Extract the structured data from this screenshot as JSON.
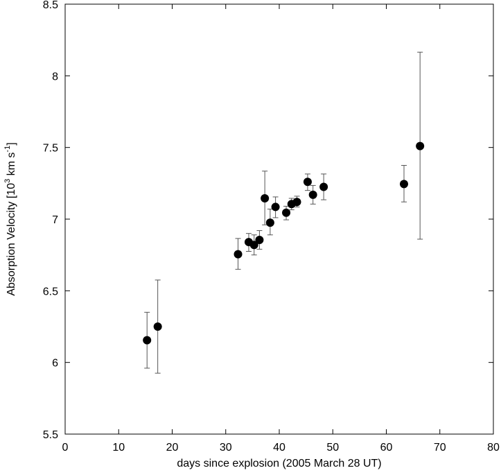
{
  "chart_data": {
    "type": "scatter",
    "xlabel": "days since explosion (2005 March 28 UT)",
    "ylabel_parts": [
      "Absorption Velocity [10",
      "3",
      " km s",
      "-1",
      "]"
    ],
    "xlim": [
      0,
      80
    ],
    "ylim": [
      5.5,
      8.5
    ],
    "xticks": [
      0,
      10,
      20,
      30,
      40,
      50,
      60,
      70,
      80
    ],
    "yticks": [
      5.5,
      6,
      6.5,
      7,
      7.5,
      8,
      8.5
    ],
    "ytick_labels": [
      "5.5",
      "6",
      "6.5",
      "7",
      "7.5",
      "8",
      "8.5"
    ],
    "grid": false,
    "series": [
      {
        "points": [
          {
            "x": 15.3,
            "y": 6.155,
            "ylo": 5.96,
            "yhi": 6.35
          },
          {
            "x": 17.3,
            "y": 6.25,
            "ylo": 5.925,
            "yhi": 6.575
          },
          {
            "x": 32.3,
            "y": 6.755,
            "ylo": 6.65,
            "yhi": 6.865
          },
          {
            "x": 34.3,
            "y": 6.84,
            "ylo": 6.775,
            "yhi": 6.9
          },
          {
            "x": 35.3,
            "y": 6.82,
            "ylo": 6.75,
            "yhi": 6.89
          },
          {
            "x": 36.3,
            "y": 6.855,
            "ylo": 6.79,
            "yhi": 6.92
          },
          {
            "x": 37.3,
            "y": 7.145,
            "ylo": 6.96,
            "yhi": 7.335
          },
          {
            "x": 38.3,
            "y": 6.975,
            "ylo": 6.89,
            "yhi": 7.07
          },
          {
            "x": 39.3,
            "y": 7.085,
            "ylo": 7.01,
            "yhi": 7.155
          },
          {
            "x": 41.3,
            "y": 7.045,
            "ylo": 6.995,
            "yhi": 7.09
          },
          {
            "x": 42.3,
            "y": 7.105,
            "ylo": 7.065,
            "yhi": 7.145
          },
          {
            "x": 43.3,
            "y": 7.12,
            "ylo": 7.085,
            "yhi": 7.16
          },
          {
            "x": 45.3,
            "y": 7.26,
            "ylo": 7.2,
            "yhi": 7.315
          },
          {
            "x": 46.3,
            "y": 7.17,
            "ylo": 7.105,
            "yhi": 7.235
          },
          {
            "x": 48.3,
            "y": 7.225,
            "ylo": 7.135,
            "yhi": 7.315
          },
          {
            "x": 63.3,
            "y": 7.245,
            "ylo": 7.12,
            "yhi": 7.375
          },
          {
            "x": 66.3,
            "y": 7.51,
            "ylo": 6.86,
            "yhi": 8.165
          }
        ]
      }
    ],
    "colors": {
      "marker": "#000000",
      "errorbar": "#555555",
      "axis": "#000000"
    }
  }
}
